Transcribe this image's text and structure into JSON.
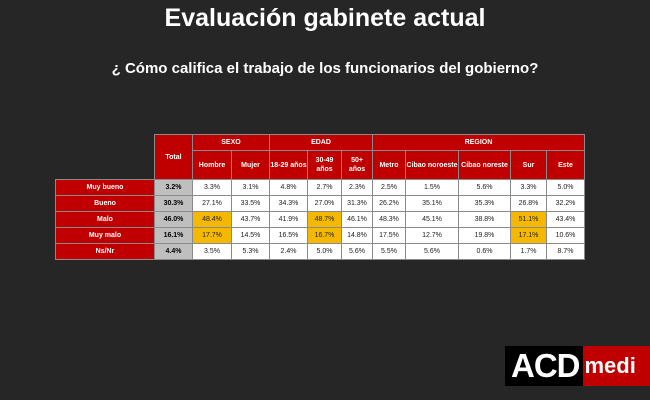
{
  "title": "Evaluación gabinete actual",
  "subtitle": "¿ Cómo califica el trabajo de los funcionarios del gobierno?",
  "table": {
    "total_label": "Total",
    "groups": {
      "sexo": "SEXO",
      "edad": "EDAD",
      "region": "REGION"
    },
    "columns": [
      "Hombre",
      "Mujer",
      "18-29 años",
      "30-49 años",
      "50+ años",
      "Metro",
      "Cibao noroeste",
      "Cibao noreste",
      "Sur",
      "Este"
    ],
    "rows": [
      {
        "label": "Muy bueno",
        "total": "3.2%",
        "values": [
          "3.3%",
          "3.1%",
          "4.8%",
          "2.7%",
          "2.3%",
          "2.5%",
          "1.5%",
          "5.6%",
          "3.3%",
          "5.0%"
        ],
        "highlight": []
      },
      {
        "label": "Bueno",
        "total": "30.3%",
        "values": [
          "27.1%",
          "33.5%",
          "34.3%",
          "27.0%",
          "31.3%",
          "26.2%",
          "35.1%",
          "35.3%",
          "26.8%",
          "32.2%"
        ],
        "highlight": []
      },
      {
        "label": "Malo",
        "total": "46.0%",
        "values": [
          "48.4%",
          "43.7%",
          "41.9%",
          "48.7%",
          "46.1%",
          "48.3%",
          "45.1%",
          "38.8%",
          "51.1%",
          "43.4%"
        ],
        "highlight": [
          0,
          3,
          8
        ]
      },
      {
        "label": "Muy malo",
        "total": "16.1%",
        "values": [
          "17.7%",
          "14.5%",
          "16.5%",
          "16.7%",
          "14.8%",
          "17.5%",
          "12.7%",
          "19.8%",
          "17.1%",
          "10.6%"
        ],
        "highlight": [
          0,
          3,
          8
        ]
      },
      {
        "label": "Ns/Nr",
        "total": "4.4%",
        "values": [
          "3.5%",
          "5.3%",
          "2.4%",
          "5.0%",
          "5.6%",
          "5.5%",
          "5.6%",
          "0.6%",
          "1.7%",
          "8.7%"
        ],
        "highlight": []
      }
    ]
  },
  "logo": {
    "part1": "ACD",
    "part2": "medi"
  },
  "colors": {
    "header_red": "#c00000",
    "highlight": "#f5b800",
    "total_gray": "#bfbfbf",
    "background": "#262626"
  }
}
